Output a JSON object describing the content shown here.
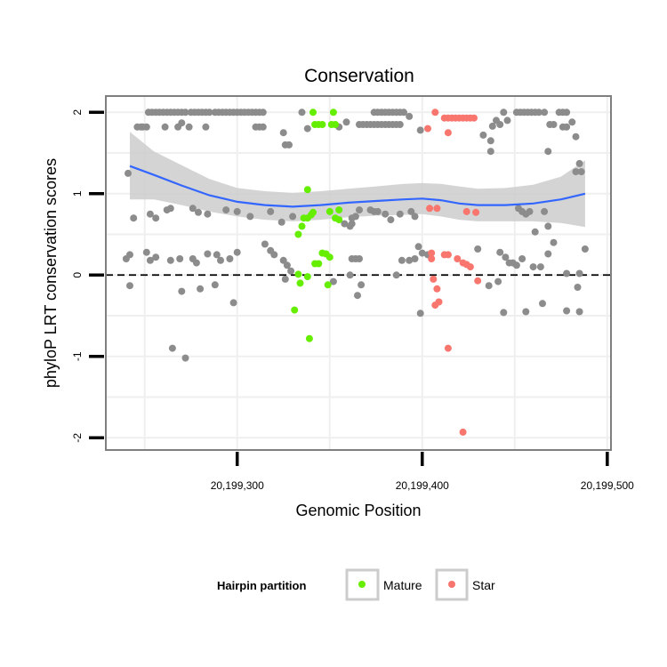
{
  "chart_data": {
    "type": "scatter",
    "title": "Conservation",
    "xlabel": "Genomic Position",
    "ylabel": "phyloP LRT conservation scores",
    "xlim": [
      20199229,
      20199502
    ],
    "ylim": [
      -2.15,
      2.2
    ],
    "x_ticks": [
      20199300,
      20199400,
      20199500
    ],
    "x_tick_labels": [
      "20,199,300",
      "20,199,400",
      "20,199,500"
    ],
    "y_ticks": [
      -2,
      -1,
      0,
      1,
      2
    ],
    "y_tick_labels": [
      "-2",
      "-1",
      "0",
      "1",
      "2"
    ],
    "reference_line": {
      "y": 0,
      "style": "dashed"
    },
    "grid": true,
    "legend": {
      "title": "Hairpin partition",
      "position": "bottom",
      "entries": [
        {
          "label": "Mature",
          "color": "#66ee00"
        },
        {
          "label": "Star",
          "color": "#f8766d"
        }
      ]
    },
    "colors": {
      "other": "#8c8c8c",
      "smooth": "#3366ff",
      "band": "#cccccc"
    },
    "smooth": {
      "x": [
        20199242,
        20199255,
        20199270,
        20199285,
        20199300,
        20199315,
        20199330,
        20199345,
        20199360,
        20199375,
        20199390,
        20199400,
        20199410,
        20199420,
        20199430,
        20199445,
        20199460,
        20199475,
        20199488
      ],
      "y": [
        1.34,
        1.23,
        1.1,
        0.98,
        0.9,
        0.86,
        0.84,
        0.86,
        0.89,
        0.91,
        0.93,
        0.94,
        0.92,
        0.88,
        0.86,
        0.86,
        0.88,
        0.93,
        1.0
      ],
      "lower": [
        0.93,
        0.93,
        0.86,
        0.78,
        0.72,
        0.68,
        0.66,
        0.68,
        0.71,
        0.73,
        0.74,
        0.75,
        0.72,
        0.68,
        0.66,
        0.66,
        0.66,
        0.64,
        0.59
      ],
      "upper": [
        1.76,
        1.52,
        1.35,
        1.18,
        1.07,
        1.03,
        1.01,
        1.03,
        1.06,
        1.09,
        1.12,
        1.13,
        1.12,
        1.09,
        1.06,
        1.07,
        1.11,
        1.21,
        1.41
      ]
    },
    "series": [
      {
        "name": "Mature",
        "color": "#66ee00",
        "points": [
          [
            20199341,
            2.0
          ],
          [
            20199342,
            1.85
          ],
          [
            20199344,
            1.85
          ],
          [
            20199346,
            1.85
          ],
          [
            20199351,
            1.85
          ],
          [
            20199353,
            1.85
          ],
          [
            20199352,
            2.0
          ],
          [
            20199338,
            1.05
          ],
          [
            20199336,
            0.7
          ],
          [
            20199338,
            0.7
          ],
          [
            20199340,
            0.74
          ],
          [
            20199341,
            0.77
          ],
          [
            20199335,
            0.6
          ],
          [
            20199333,
            0.5
          ],
          [
            20199350,
            0.78
          ],
          [
            20199353,
            0.7
          ],
          [
            20199355,
            0.68
          ],
          [
            20199355,
            0.8
          ],
          [
            20199346,
            0.27
          ],
          [
            20199348,
            0.26
          ],
          [
            20199350,
            0.22
          ],
          [
            20199342,
            0.14
          ],
          [
            20199344,
            0.14
          ],
          [
            20199333,
            0.01
          ],
          [
            20199338,
            -0.02
          ],
          [
            20199334,
            -0.1
          ],
          [
            20199349,
            -0.12
          ],
          [
            20199331,
            -0.43
          ],
          [
            20199339,
            -0.78
          ]
        ]
      },
      {
        "name": "Star",
        "color": "#f8766d",
        "points": [
          [
            20199407,
            2.0
          ],
          [
            20199403,
            1.8
          ],
          [
            20199412,
            1.93
          ],
          [
            20199414,
            1.93
          ],
          [
            20199416,
            1.93
          ],
          [
            20199418,
            1.93
          ],
          [
            20199420,
            1.93
          ],
          [
            20199422,
            1.93
          ],
          [
            20199424,
            1.93
          ],
          [
            20199426,
            1.93
          ],
          [
            20199428,
            1.93
          ],
          [
            20199414,
            1.75
          ],
          [
            20199404,
            0.82
          ],
          [
            20199408,
            0.82
          ],
          [
            20199424,
            0.78
          ],
          [
            20199429,
            0.77
          ],
          [
            20199405,
            0.27
          ],
          [
            20199405,
            0.2
          ],
          [
            20199412,
            0.25
          ],
          [
            20199414,
            0.25
          ],
          [
            20199419,
            0.2
          ],
          [
            20199422,
            0.15
          ],
          [
            20199424,
            0.13
          ],
          [
            20199426,
            0.1
          ],
          [
            20199406,
            -0.05
          ],
          [
            20199430,
            -0.07
          ],
          [
            20199408,
            -0.17
          ],
          [
            20199409,
            -0.33
          ],
          [
            20199407,
            -0.37
          ],
          [
            20199414,
            -0.9
          ],
          [
            20199422,
            -1.93
          ]
        ]
      },
      {
        "name": "",
        "color": "#8c8c8c",
        "points": [
          [
            20199246,
            1.82
          ],
          [
            20199248,
            1.82
          ],
          [
            20199249,
            1.82
          ],
          [
            20199251,
            1.82
          ],
          [
            20199252,
            2.0
          ],
          [
            20199254,
            2.0
          ],
          [
            20199256,
            2.0
          ],
          [
            20199258,
            2.0
          ],
          [
            20199260,
            2.0
          ],
          [
            20199262,
            2.0
          ],
          [
            20199264,
            2.0
          ],
          [
            20199266,
            2.0
          ],
          [
            20199268,
            2.0
          ],
          [
            20199270,
            2.0
          ],
          [
            20199272,
            2.0
          ],
          [
            20199275,
            2.0
          ],
          [
            20199277,
            2.0
          ],
          [
            20199279,
            2.0
          ],
          [
            20199281,
            2.0
          ],
          [
            20199283,
            2.0
          ],
          [
            20199285,
            2.0
          ],
          [
            20199288,
            2.0
          ],
          [
            20199290,
            2.0
          ],
          [
            20199292,
            2.0
          ],
          [
            20199294,
            2.0
          ],
          [
            20199296,
            2.0
          ],
          [
            20199298,
            2.0
          ],
          [
            20199300,
            2.0
          ],
          [
            20199302,
            2.0
          ],
          [
            20199304,
            2.0
          ],
          [
            20199306,
            2.0
          ],
          [
            20199308,
            2.0
          ],
          [
            20199310,
            2.0
          ],
          [
            20199312,
            2.0
          ],
          [
            20199314,
            2.0
          ],
          [
            20199261,
            1.82
          ],
          [
            20199268,
            1.82
          ],
          [
            20199270,
            1.87
          ],
          [
            20199274,
            1.82
          ],
          [
            20199283,
            1.82
          ],
          [
            20199310,
            1.82
          ],
          [
            20199312,
            1.82
          ],
          [
            20199314,
            1.82
          ],
          [
            20199325,
            1.75
          ],
          [
            20199326,
            1.6
          ],
          [
            20199328,
            1.6
          ],
          [
            20199335,
            2.0
          ],
          [
            20199338,
            1.8
          ],
          [
            20199355,
            1.82
          ],
          [
            20199359,
            1.88
          ],
          [
            20199366,
            1.85
          ],
          [
            20199368,
            1.85
          ],
          [
            20199370,
            1.85
          ],
          [
            20199372,
            1.85
          ],
          [
            20199374,
            1.85
          ],
          [
            20199376,
            1.85
          ],
          [
            20199378,
            1.85
          ],
          [
            20199380,
            1.85
          ],
          [
            20199382,
            1.85
          ],
          [
            20199384,
            1.85
          ],
          [
            20199386,
            1.85
          ],
          [
            20199388,
            1.85
          ],
          [
            20199374,
            2.0
          ],
          [
            20199376,
            2.0
          ],
          [
            20199378,
            2.0
          ],
          [
            20199380,
            2.0
          ],
          [
            20199382,
            2.0
          ],
          [
            20199384,
            2.0
          ],
          [
            20199386,
            2.0
          ],
          [
            20199388,
            2.0
          ],
          [
            20199390,
            2.0
          ],
          [
            20199393,
            1.95
          ],
          [
            20199399,
            1.78
          ],
          [
            20199433,
            1.72
          ],
          [
            20199437,
            1.52
          ],
          [
            20199437,
            1.65
          ],
          [
            20199438,
            1.83
          ],
          [
            20199440,
            1.9
          ],
          [
            20199442,
            1.85
          ],
          [
            20199444,
            2.0
          ],
          [
            20199446,
            1.9
          ],
          [
            20199451,
            2.0
          ],
          [
            20199453,
            2.0
          ],
          [
            20199455,
            2.0
          ],
          [
            20199457,
            2.0
          ],
          [
            20199459,
            2.0
          ],
          [
            20199461,
            2.0
          ],
          [
            20199463,
            2.0
          ],
          [
            20199466,
            2.0
          ],
          [
            20199469,
            1.85
          ],
          [
            20199471,
            1.85
          ],
          [
            20199474,
            2.0
          ],
          [
            20199476,
            2.0
          ],
          [
            20199478,
            2.0
          ],
          [
            20199476,
            1.82
          ],
          [
            20199478,
            1.82
          ],
          [
            20199481,
            1.88
          ],
          [
            20199483,
            1.7
          ],
          [
            20199468,
            1.52
          ],
          [
            20199483,
            1.27
          ],
          [
            20199485,
            1.37
          ],
          [
            20199486,
            1.27
          ],
          [
            20199241,
            1.25
          ],
          [
            20199244,
            0.7
          ],
          [
            20199253,
            0.75
          ],
          [
            20199256,
            0.7
          ],
          [
            20199262,
            0.8
          ],
          [
            20199264,
            0.82
          ],
          [
            20199276,
            0.82
          ],
          [
            20199279,
            0.77
          ],
          [
            20199284,
            0.75
          ],
          [
            20199294,
            0.8
          ],
          [
            20199300,
            0.78
          ],
          [
            20199307,
            0.72
          ],
          [
            20199318,
            0.78
          ],
          [
            20199324,
            0.65
          ],
          [
            20199330,
            0.72
          ],
          [
            20199362,
            0.7
          ],
          [
            20199364,
            0.72
          ],
          [
            20199366,
            0.8
          ],
          [
            20199372,
            0.8
          ],
          [
            20199374,
            0.78
          ],
          [
            20199376,
            0.78
          ],
          [
            20199380,
            0.75
          ],
          [
            20199383,
            0.68
          ],
          [
            20199388,
            0.75
          ],
          [
            20199358,
            0.63
          ],
          [
            20199361,
            0.6
          ],
          [
            20199362,
            0.63
          ],
          [
            20199394,
            0.78
          ],
          [
            20199396,
            0.72
          ],
          [
            20199452,
            0.82
          ],
          [
            20199454,
            0.78
          ],
          [
            20199456,
            0.75
          ],
          [
            20199458,
            0.78
          ],
          [
            20199466,
            0.78
          ],
          [
            20199468,
            0.6
          ],
          [
            20199461,
            0.53
          ],
          [
            20199471,
            0.4
          ],
          [
            20199240,
            0.2
          ],
          [
            20199242,
            0.25
          ],
          [
            20199251,
            0.28
          ],
          [
            20199253,
            0.18
          ],
          [
            20199256,
            0.22
          ],
          [
            20199264,
            0.18
          ],
          [
            20199269,
            0.2
          ],
          [
            20199276,
            0.2
          ],
          [
            20199278,
            0.15
          ],
          [
            20199284,
            0.26
          ],
          [
            20199289,
            0.25
          ],
          [
            20199291,
            0.18
          ],
          [
            20199296,
            0.2
          ],
          [
            20199300,
            0.28
          ],
          [
            20199315,
            0.38
          ],
          [
            20199318,
            0.3
          ],
          [
            20199320,
            0.25
          ],
          [
            20199325,
            0.18
          ],
          [
            20199327,
            0.12
          ],
          [
            20199362,
            0.2
          ],
          [
            20199364,
            0.2
          ],
          [
            20199366,
            0.2
          ],
          [
            20199389,
            0.18
          ],
          [
            20199393,
            0.18
          ],
          [
            20199396,
            0.2
          ],
          [
            20199398,
            0.35
          ],
          [
            20199400,
            0.27
          ],
          [
            20199403,
            0.25
          ],
          [
            20199430,
            0.32
          ],
          [
            20199442,
            0.28
          ],
          [
            20199445,
            0.22
          ],
          [
            20199447,
            0.15
          ],
          [
            20199449,
            0.15
          ],
          [
            20199451,
            0.12
          ],
          [
            20199454,
            0.2
          ],
          [
            20199460,
            0.1
          ],
          [
            20199464,
            0.1
          ],
          [
            20199468,
            0.26
          ],
          [
            20199478,
            0.02
          ],
          [
            20199485,
            0.02
          ],
          [
            20199488,
            0.32
          ],
          [
            20199242,
            -0.13
          ],
          [
            20199270,
            -0.2
          ],
          [
            20199280,
            -0.17
          ],
          [
            20199288,
            -0.12
          ],
          [
            20199298,
            -0.34
          ],
          [
            20199326,
            -0.05
          ],
          [
            20199329,
            0.05
          ],
          [
            20199352,
            -0.08
          ],
          [
            20199361,
            0.0
          ],
          [
            20199365,
            -0.25
          ],
          [
            20199367,
            -0.12
          ],
          [
            20199386,
            0.0
          ],
          [
            20199399,
            -0.47
          ],
          [
            20199436,
            -0.13
          ],
          [
            20199441,
            -0.08
          ],
          [
            20199444,
            -0.46
          ],
          [
            20199456,
            -0.45
          ],
          [
            20199465,
            -0.35
          ],
          [
            20199478,
            -0.44
          ],
          [
            20199484,
            -0.15
          ],
          [
            20199485,
            -0.45
          ],
          [
            20199265,
            -0.9
          ],
          [
            20199272,
            -1.02
          ]
        ]
      }
    ]
  }
}
